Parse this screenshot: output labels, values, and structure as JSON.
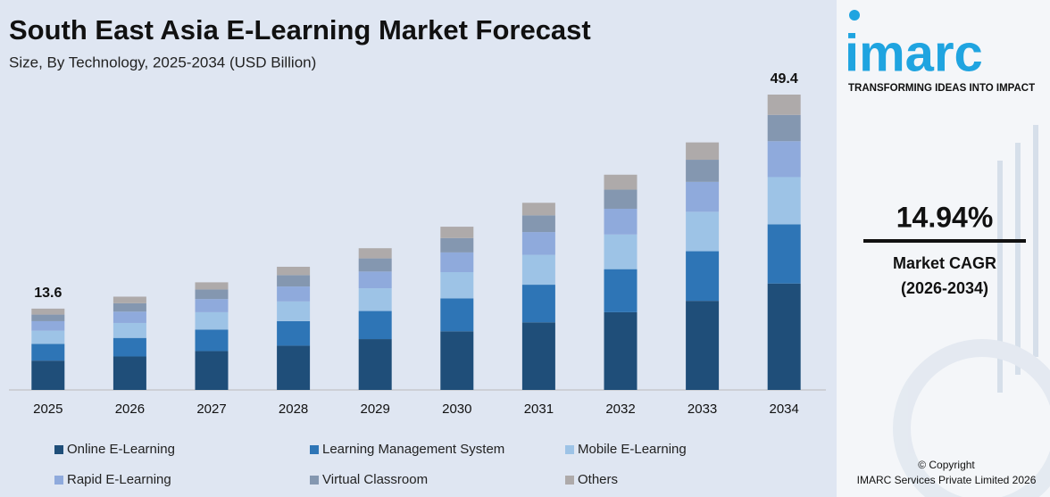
{
  "chart_data": {
    "type": "stacked_bar",
    "title": "South East Asia E-Learning Market Forecast",
    "subtitle": "Size, By Technology, 2025-2034 (USD Billion)",
    "categories": [
      "2025",
      "2026",
      "2027",
      "2028",
      "2029",
      "2030",
      "2031",
      "2032",
      "2033",
      "2034"
    ],
    "series": [
      {
        "name": "Online E-Learning",
        "color": "#1f4e79",
        "values": [
          4.9,
          5.6,
          6.5,
          7.4,
          8.5,
          9.8,
          11.3,
          13.0,
          14.9,
          17.8
        ]
      },
      {
        "name": "Learning Management System",
        "color": "#2e75b6",
        "values": [
          2.8,
          3.1,
          3.6,
          4.1,
          4.7,
          5.5,
          6.3,
          7.2,
          8.3,
          9.9
        ]
      },
      {
        "name": "Mobile E-Learning",
        "color": "#9dc3e6",
        "values": [
          2.2,
          2.5,
          2.9,
          3.3,
          3.8,
          4.4,
          5.0,
          5.8,
          6.6,
          7.9
        ]
      },
      {
        "name": "Rapid E-Learning",
        "color": "#8faadc",
        "values": [
          1.6,
          1.9,
          2.2,
          2.5,
          2.8,
          3.3,
          3.8,
          4.3,
          5.0,
          6.0
        ]
      },
      {
        "name": "Virtual Classroom",
        "color": "#8497b0",
        "values": [
          1.1,
          1.4,
          1.6,
          1.9,
          2.2,
          2.4,
          2.8,
          3.2,
          3.7,
          4.4
        ]
      },
      {
        "name": "Others",
        "color": "#aeaaaa",
        "values": [
          1.0,
          1.1,
          1.2,
          1.4,
          1.7,
          1.9,
          2.1,
          2.5,
          2.9,
          3.4
        ]
      }
    ],
    "annotations": [
      {
        "category": "2025",
        "text": "13.6"
      },
      {
        "category": "2034",
        "text": "49.4"
      }
    ]
  },
  "sidebar": {
    "logo": "imarc",
    "tagline": "TRANSFORMING IDEAS INTO IMPACT",
    "cagr": "14.94%",
    "cagr_label": "Market CAGR",
    "cagr_period": "(2026-2034)",
    "copyright": "© Copyright",
    "company": "IMARC Services Private Limited 2026"
  }
}
